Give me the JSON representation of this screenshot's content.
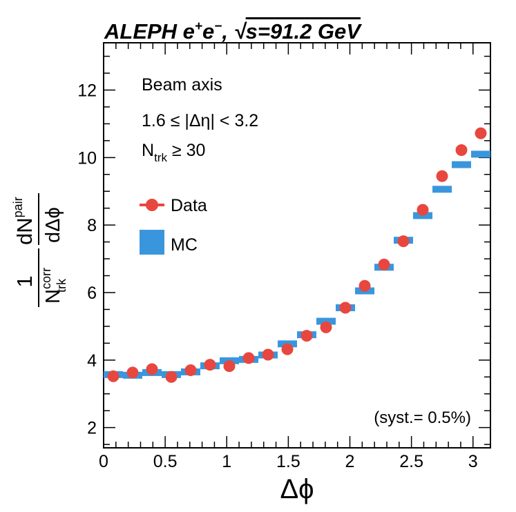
{
  "header": {
    "experiment": "ALEPH e",
    "plus": "+",
    "e": "e",
    "minus": "−",
    "sep": ",  ",
    "sqrt": "√",
    "energy": "s=91.2 GeV"
  },
  "labels": {
    "line1": "Beam axis",
    "line2": "1.6 ≤ |Δη| < 3.2",
    "ntrk_N": "N",
    "ntrk_sub": "trk",
    "ntrk_rest": " ≥ 30",
    "syst": "(syst.= 0.5%)"
  },
  "axes": {
    "xlabel": "Δϕ",
    "ylabel": {
      "one": "1",
      "N": "N",
      "N_sup": "corr",
      "N_sub": "trk",
      "dN": "dN",
      "dN_sup": "pair",
      "dphi": "dΔϕ"
    }
  },
  "legend": {
    "data": "Data",
    "mc": "MC"
  },
  "colors": {
    "data": "#e8473f",
    "mc": "#3a96dc"
  },
  "chart_data": {
    "type": "scatter",
    "xlim": [
      0,
      3.1416
    ],
    "ylim": [
      1.4,
      13.4
    ],
    "x_ticks": [
      "0",
      "0.5",
      "1",
      "1.5",
      "2",
      "2.5",
      "3"
    ],
    "y_ticks": [
      "2",
      "4",
      "6",
      "8",
      "10",
      "12"
    ],
    "x": [
      0.0785,
      0.2356,
      0.3927,
      0.5498,
      0.7069,
      0.864,
      1.021,
      1.1781,
      1.3352,
      1.4923,
      1.6493,
      1.8064,
      1.9635,
      2.1206,
      2.2777,
      2.4347,
      2.5918,
      2.7489,
      2.906,
      3.0631
    ],
    "series": [
      {
        "name": "Data",
        "values": [
          3.52,
          3.63,
          3.73,
          3.5,
          3.7,
          3.86,
          3.82,
          4.06,
          4.16,
          4.32,
          4.72,
          4.97,
          5.55,
          6.2,
          6.83,
          7.52,
          8.45,
          9.45,
          10.22,
          10.72
        ]
      },
      {
        "name": "MC",
        "values": [
          3.57,
          3.55,
          3.63,
          3.57,
          3.65,
          3.83,
          3.98,
          4.02,
          4.15,
          4.48,
          4.75,
          5.15,
          5.55,
          6.05,
          6.75,
          7.55,
          8.28,
          9.06,
          9.79,
          10.1
        ]
      }
    ]
  }
}
